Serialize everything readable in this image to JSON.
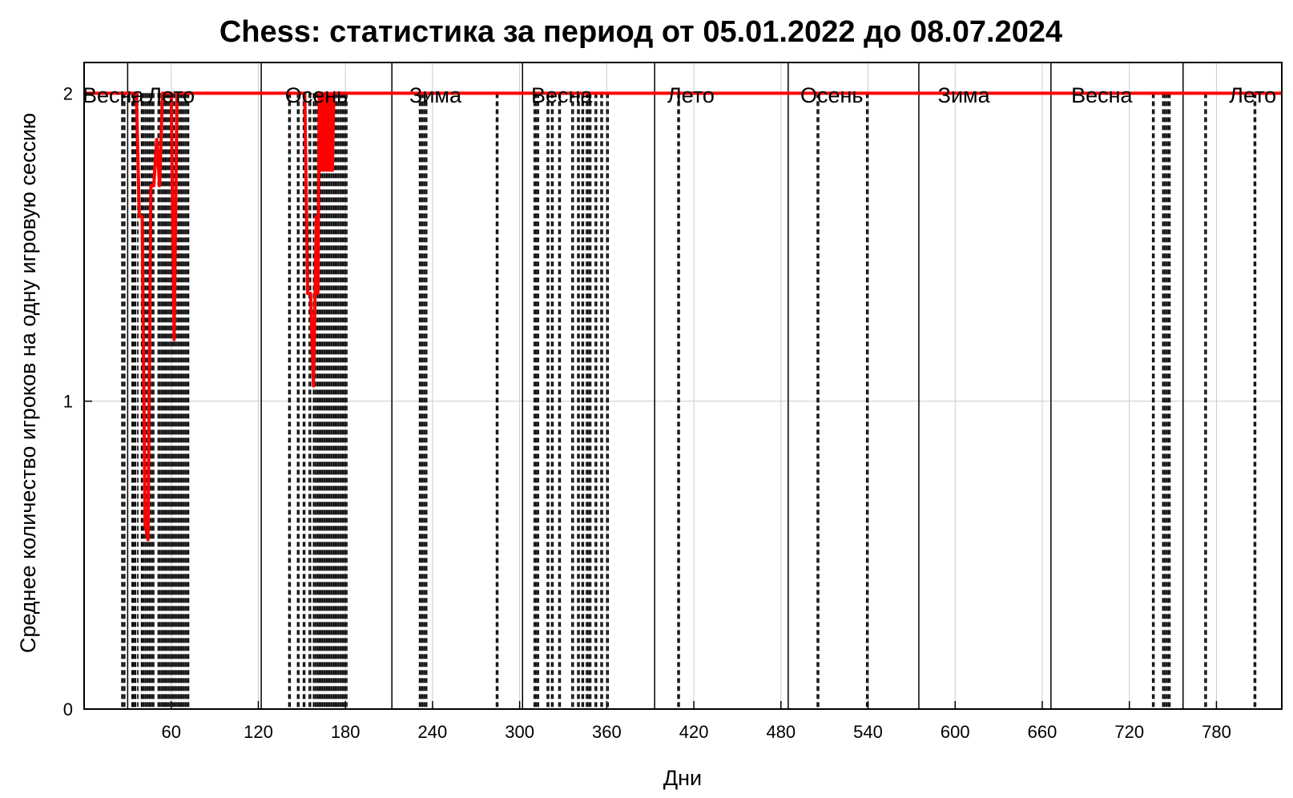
{
  "chart_data": {
    "type": "line",
    "title": "Chess: статистика за период от 05.01.2022 до 08.07.2024",
    "xlabel": "Дни",
    "ylabel": "Среднее количество игроков на одну игровую сессию",
    "xlim": [
      0,
      825
    ],
    "ylim": [
      0,
      2.1
    ],
    "grid": true,
    "x_ticks": [
      60,
      120,
      180,
      240,
      300,
      360,
      420,
      480,
      540,
      600,
      660,
      720,
      780
    ],
    "y_ticks": [
      0,
      1,
      2
    ],
    "season_boundaries": [
      30,
      122,
      212,
      302,
      393,
      485,
      575,
      666,
      757
    ],
    "season_labels": [
      {
        "x": 20,
        "text": "Весна"
      },
      {
        "x": 60,
        "text": "Лето"
      },
      {
        "x": 160,
        "text": "Осень"
      },
      {
        "x": 242,
        "text": "Зима"
      },
      {
        "x": 329,
        "text": "Весна"
      },
      {
        "x": 418,
        "text": "Лето"
      },
      {
        "x": 515,
        "text": "Осень"
      },
      {
        "x": 606,
        "text": "Зима"
      },
      {
        "x": 701,
        "text": "Весна"
      },
      {
        "x": 805,
        "text": "Лето"
      }
    ],
    "series": [
      {
        "color": "#ff0000",
        "x": [
          0,
          36,
          38,
          40,
          42,
          44,
          46,
          48,
          50,
          52,
          54,
          55,
          56,
          57,
          58,
          60,
          62,
          64,
          65,
          66,
          67,
          68,
          69,
          70,
          140,
          152,
          154,
          156,
          158,
          160,
          161,
          162,
          163,
          164,
          165,
          166,
          167,
          168,
          169,
          170,
          171,
          172,
          173,
          174,
          175,
          176,
          177,
          178,
          825
        ],
        "values": [
          2,
          2,
          1.6,
          1.6,
          0.6,
          0.55,
          1.7,
          1.7,
          1.85,
          1.7,
          2,
          2,
          2,
          2,
          2,
          2,
          1.2,
          2,
          2,
          2,
          2,
          2,
          2,
          2,
          2,
          2,
          1.35,
          1.35,
          1.05,
          1.6,
          1.35,
          2,
          1.75,
          2,
          1.75,
          2,
          1.75,
          2,
          1.75,
          2,
          1.75,
          2,
          2,
          2,
          2,
          2,
          2,
          2,
          2
        ]
      }
    ],
    "reference_lines": [
      {
        "style": "dashed",
        "color": "#000000",
        "x": [
          26,
          27,
          28,
          33,
          33.5,
          34,
          35,
          35.5,
          37,
          39.5,
          40,
          41,
          42,
          43,
          44,
          45,
          46,
          47,
          48,
          51,
          52,
          53,
          54,
          55,
          56,
          57,
          58,
          59,
          60,
          61,
          62,
          63,
          64,
          65,
          66,
          67,
          68,
          69,
          70,
          71,
          72
        ]
      },
      {
        "style": "dashed",
        "color": "#000000",
        "x": [
          141,
          142,
          147,
          148,
          151,
          152,
          155,
          156,
          158,
          159,
          160,
          161,
          162,
          163,
          164,
          165,
          166,
          167,
          168,
          169,
          170,
          171,
          172,
          173,
          174,
          175,
          176,
          177,
          178,
          179,
          180,
          181
        ]
      },
      {
        "style": "dashed",
        "color": "#000000",
        "x": [
          231,
          232,
          233,
          234,
          235,
          236,
          284,
          285
        ]
      },
      {
        "style": "dashed",
        "color": "#000000",
        "x": [
          310,
          311,
          312,
          313,
          319,
          320,
          322,
          323,
          327,
          328,
          336,
          337,
          340,
          341,
          343,
          344,
          346,
          347,
          348,
          349,
          352,
          353,
          356,
          357,
          360,
          361
        ]
      },
      {
        "style": "dashed",
        "color": "#000000",
        "x": [
          409,
          410,
          505,
          506,
          539,
          540
        ]
      },
      {
        "style": "dashed",
        "color": "#000000",
        "x": [
          736,
          737,
          743,
          744,
          745,
          746,
          747,
          748,
          772,
          773,
          806,
          807
        ]
      }
    ]
  }
}
